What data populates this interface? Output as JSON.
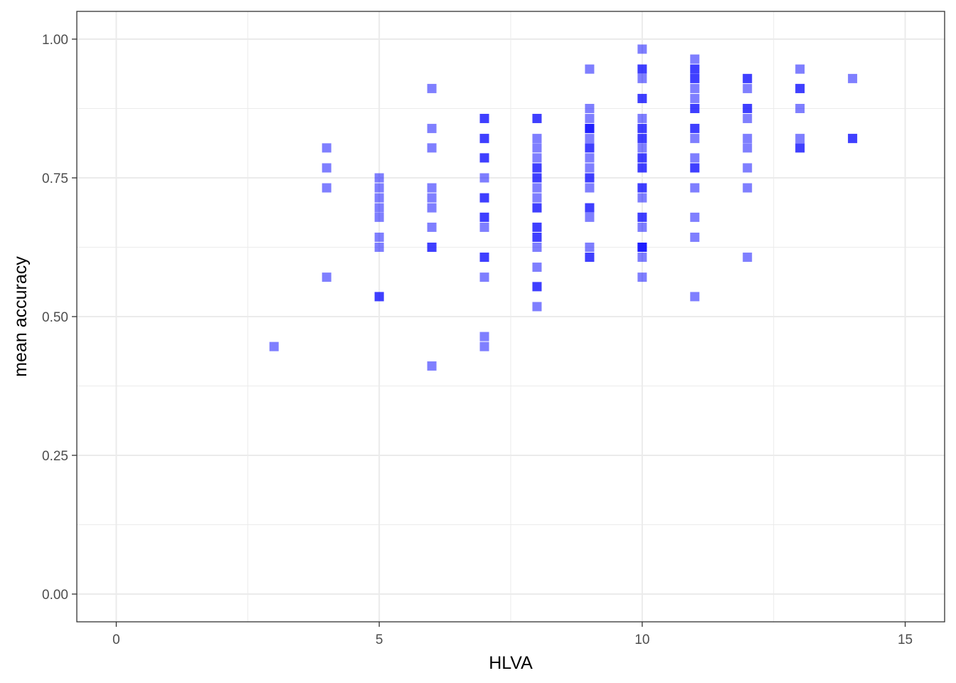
{
  "chart_data": {
    "type": "scatter",
    "xlabel": "HLVA",
    "ylabel": "mean accuracy",
    "xlim": [
      -0.75,
      15.75
    ],
    "ylim": [
      -0.05,
      1.05
    ],
    "x_ticks": [
      0,
      5,
      10,
      15
    ],
    "x_tick_labels": [
      "0",
      "5",
      "10",
      "15"
    ],
    "y_ticks": [
      0,
      0.25,
      0.5,
      0.75,
      1.0
    ],
    "y_tick_labels": [
      "0.00",
      "0.25",
      "0.50",
      "0.75",
      "1.00"
    ],
    "grid": true,
    "marker": "square",
    "marker_alpha": 0.5,
    "colors": {
      "point": "#0000ff",
      "grid": "#ebebeb",
      "panel_border": "#333333",
      "tick": "#333333"
    },
    "points": [
      {
        "x": 3,
        "y": 0.446
      },
      {
        "x": 4,
        "y": 0.804
      },
      {
        "x": 4,
        "y": 0.768
      },
      {
        "x": 4,
        "y": 0.732
      },
      {
        "x": 4,
        "y": 0.571
      },
      {
        "x": 5,
        "y": 0.75
      },
      {
        "x": 5,
        "y": 0.732
      },
      {
        "x": 5,
        "y": 0.714
      },
      {
        "x": 5,
        "y": 0.696
      },
      {
        "x": 5,
        "y": 0.679
      },
      {
        "x": 5,
        "y": 0.643
      },
      {
        "x": 5,
        "y": 0.625
      },
      {
        "x": 5,
        "y": 0.536
      },
      {
        "x": 5,
        "y": 0.536
      },
      {
        "x": 6,
        "y": 0.911
      },
      {
        "x": 6,
        "y": 0.839
      },
      {
        "x": 6,
        "y": 0.804
      },
      {
        "x": 6,
        "y": 0.732
      },
      {
        "x": 6,
        "y": 0.714
      },
      {
        "x": 6,
        "y": 0.696
      },
      {
        "x": 6,
        "y": 0.661
      },
      {
        "x": 6,
        "y": 0.625
      },
      {
        "x": 6,
        "y": 0.625
      },
      {
        "x": 6,
        "y": 0.411
      },
      {
        "x": 7,
        "y": 0.857
      },
      {
        "x": 7,
        "y": 0.857
      },
      {
        "x": 7,
        "y": 0.821
      },
      {
        "x": 7,
        "y": 0.821
      },
      {
        "x": 7,
        "y": 0.786
      },
      {
        "x": 7,
        "y": 0.786
      },
      {
        "x": 7,
        "y": 0.75
      },
      {
        "x": 7,
        "y": 0.714
      },
      {
        "x": 7,
        "y": 0.714
      },
      {
        "x": 7,
        "y": 0.679
      },
      {
        "x": 7,
        "y": 0.679
      },
      {
        "x": 7,
        "y": 0.661
      },
      {
        "x": 7,
        "y": 0.607
      },
      {
        "x": 7,
        "y": 0.607
      },
      {
        "x": 7,
        "y": 0.571
      },
      {
        "x": 7,
        "y": 0.464
      },
      {
        "x": 7,
        "y": 0.446
      },
      {
        "x": 8,
        "y": 0.857
      },
      {
        "x": 8,
        "y": 0.857
      },
      {
        "x": 8,
        "y": 0.821
      },
      {
        "x": 8,
        "y": 0.804
      },
      {
        "x": 8,
        "y": 0.786
      },
      {
        "x": 8,
        "y": 0.768
      },
      {
        "x": 8,
        "y": 0.768
      },
      {
        "x": 8,
        "y": 0.75
      },
      {
        "x": 8,
        "y": 0.75
      },
      {
        "x": 8,
        "y": 0.732
      },
      {
        "x": 8,
        "y": 0.714
      },
      {
        "x": 8,
        "y": 0.696
      },
      {
        "x": 8,
        "y": 0.696
      },
      {
        "x": 8,
        "y": 0.661
      },
      {
        "x": 8,
        "y": 0.661
      },
      {
        "x": 8,
        "y": 0.643
      },
      {
        "x": 8,
        "y": 0.643
      },
      {
        "x": 8,
        "y": 0.625
      },
      {
        "x": 8,
        "y": 0.589
      },
      {
        "x": 8,
        "y": 0.554
      },
      {
        "x": 8,
        "y": 0.554
      },
      {
        "x": 8,
        "y": 0.518
      },
      {
        "x": 9,
        "y": 0.946
      },
      {
        "x": 9,
        "y": 0.875
      },
      {
        "x": 9,
        "y": 0.857
      },
      {
        "x": 9,
        "y": 0.839
      },
      {
        "x": 9,
        "y": 0.839
      },
      {
        "x": 9,
        "y": 0.839
      },
      {
        "x": 9,
        "y": 0.821
      },
      {
        "x": 9,
        "y": 0.804
      },
      {
        "x": 9,
        "y": 0.804
      },
      {
        "x": 9,
        "y": 0.786
      },
      {
        "x": 9,
        "y": 0.768
      },
      {
        "x": 9,
        "y": 0.75
      },
      {
        "x": 9,
        "y": 0.75
      },
      {
        "x": 9,
        "y": 0.732
      },
      {
        "x": 9,
        "y": 0.696
      },
      {
        "x": 9,
        "y": 0.696
      },
      {
        "x": 9,
        "y": 0.679
      },
      {
        "x": 9,
        "y": 0.625
      },
      {
        "x": 9,
        "y": 0.607
      },
      {
        "x": 9,
        "y": 0.607
      },
      {
        "x": 10,
        "y": 0.982
      },
      {
        "x": 10,
        "y": 0.946
      },
      {
        "x": 10,
        "y": 0.946
      },
      {
        "x": 10,
        "y": 0.929
      },
      {
        "x": 10,
        "y": 0.893
      },
      {
        "x": 10,
        "y": 0.893
      },
      {
        "x": 10,
        "y": 0.857
      },
      {
        "x": 10,
        "y": 0.839
      },
      {
        "x": 10,
        "y": 0.839
      },
      {
        "x": 10,
        "y": 0.821
      },
      {
        "x": 10,
        "y": 0.821
      },
      {
        "x": 10,
        "y": 0.804
      },
      {
        "x": 10,
        "y": 0.786
      },
      {
        "x": 10,
        "y": 0.786
      },
      {
        "x": 10,
        "y": 0.768
      },
      {
        "x": 10,
        "y": 0.768
      },
      {
        "x": 10,
        "y": 0.732
      },
      {
        "x": 10,
        "y": 0.732
      },
      {
        "x": 10,
        "y": 0.714
      },
      {
        "x": 10,
        "y": 0.679
      },
      {
        "x": 10,
        "y": 0.679
      },
      {
        "x": 10,
        "y": 0.661
      },
      {
        "x": 10,
        "y": 0.625
      },
      {
        "x": 10,
        "y": 0.625
      },
      {
        "x": 10,
        "y": 0.625
      },
      {
        "x": 10,
        "y": 0.607
      },
      {
        "x": 10,
        "y": 0.571
      },
      {
        "x": 11,
        "y": 0.964
      },
      {
        "x": 11,
        "y": 0.946
      },
      {
        "x": 11,
        "y": 0.946
      },
      {
        "x": 11,
        "y": 0.929
      },
      {
        "x": 11,
        "y": 0.929
      },
      {
        "x": 11,
        "y": 0.911
      },
      {
        "x": 11,
        "y": 0.893
      },
      {
        "x": 11,
        "y": 0.875
      },
      {
        "x": 11,
        "y": 0.875
      },
      {
        "x": 11,
        "y": 0.839
      },
      {
        "x": 11,
        "y": 0.839
      },
      {
        "x": 11,
        "y": 0.821
      },
      {
        "x": 11,
        "y": 0.786
      },
      {
        "x": 11,
        "y": 0.768
      },
      {
        "x": 11,
        "y": 0.768
      },
      {
        "x": 11,
        "y": 0.732
      },
      {
        "x": 11,
        "y": 0.679
      },
      {
        "x": 11,
        "y": 0.643
      },
      {
        "x": 11,
        "y": 0.536
      },
      {
        "x": 12,
        "y": 0.929
      },
      {
        "x": 12,
        "y": 0.929
      },
      {
        "x": 12,
        "y": 0.911
      },
      {
        "x": 12,
        "y": 0.875
      },
      {
        "x": 12,
        "y": 0.875
      },
      {
        "x": 12,
        "y": 0.857
      },
      {
        "x": 12,
        "y": 0.821
      },
      {
        "x": 12,
        "y": 0.804
      },
      {
        "x": 12,
        "y": 0.768
      },
      {
        "x": 12,
        "y": 0.732
      },
      {
        "x": 12,
        "y": 0.607
      },
      {
        "x": 13,
        "y": 0.946
      },
      {
        "x": 13,
        "y": 0.911
      },
      {
        "x": 13,
        "y": 0.911
      },
      {
        "x": 13,
        "y": 0.875
      },
      {
        "x": 13,
        "y": 0.821
      },
      {
        "x": 13,
        "y": 0.804
      },
      {
        "x": 13,
        "y": 0.804
      },
      {
        "x": 14,
        "y": 0.929
      },
      {
        "x": 14,
        "y": 0.821
      },
      {
        "x": 14,
        "y": 0.821
      }
    ]
  }
}
